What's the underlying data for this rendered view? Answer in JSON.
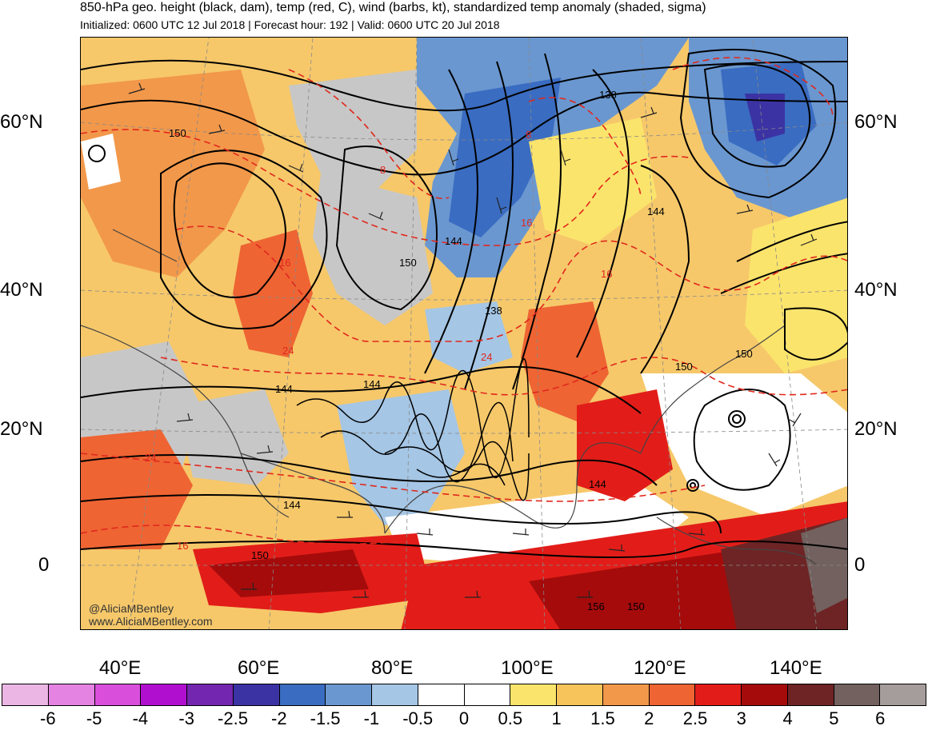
{
  "header": {
    "title": "850-hPa geo. height (black, dam), temp (red, C), wind (barbs, kt), standardized temp anomaly (shaded, sigma)",
    "subtitle": "Initialized: 0600 UTC 12 Jul 2018 | Forecast hour: 192 | Valid: 0600 UTC 20 Jul 2018"
  },
  "axes": {
    "lat_labels": [
      "60°N",
      "40°N",
      "20°N",
      "0"
    ],
    "lon_labels": [
      "40°E",
      "60°E",
      "80°E",
      "100°E",
      "120°E",
      "140°E"
    ]
  },
  "contour_labels": {
    "height": [
      "150",
      "150",
      "144",
      "138",
      "144",
      "150",
      "144",
      "150",
      "144",
      "138",
      "144",
      "150",
      "144",
      "150",
      "156"
    ],
    "temp": [
      "8",
      "16",
      "8",
      "16",
      "16",
      "24",
      "24",
      "24",
      "16"
    ]
  },
  "credit": {
    "line1": "@AliciaMBentley",
    "line2": "www.AliciaMBentley.com"
  },
  "colorbar": {
    "colors": [
      "#ebb6e4",
      "#e583e2",
      "#d94fdb",
      "#b10fd0",
      "#7326b0",
      "#3b33a3",
      "#3a6cc1",
      "#6a97d0",
      "#a5c6e5",
      "#ffffff",
      "#ffffff",
      "#fbe46c",
      "#f6c45a",
      "#f2984a",
      "#ee6433",
      "#e21d19",
      "#a50b0b",
      "#6e2424",
      "#72615e",
      "#a59d9b"
    ],
    "labels": [
      "-6",
      "-5",
      "-4",
      "-3",
      "-2.5",
      "-2",
      "-1.5",
      "-1",
      "-0.5",
      "0",
      "0.5",
      "1",
      "1.5",
      "2",
      "2.5",
      "3",
      "4",
      "5",
      "6"
    ]
  }
}
